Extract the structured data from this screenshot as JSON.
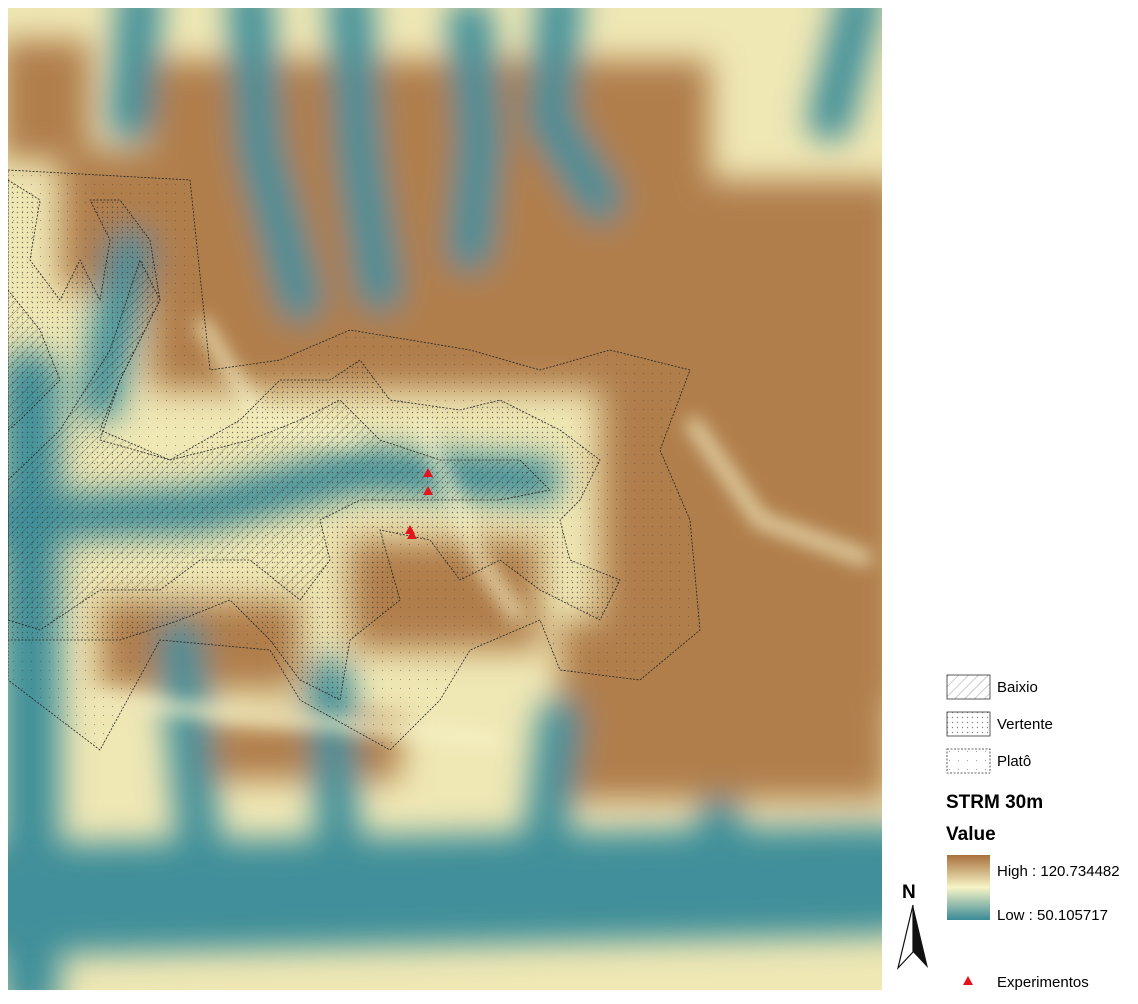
{
  "legend": {
    "zones": [
      {
        "label": "Baixio"
      },
      {
        "label": "Vertente"
      },
      {
        "label": "Platô"
      }
    ],
    "raster_title": "STRM 30m",
    "raster_field": "Value",
    "high_label": "High : 120.734482",
    "low_label": "Low : 50.105717",
    "points_label": "Experimentos"
  },
  "north_arrow": {
    "label": "N"
  }
}
